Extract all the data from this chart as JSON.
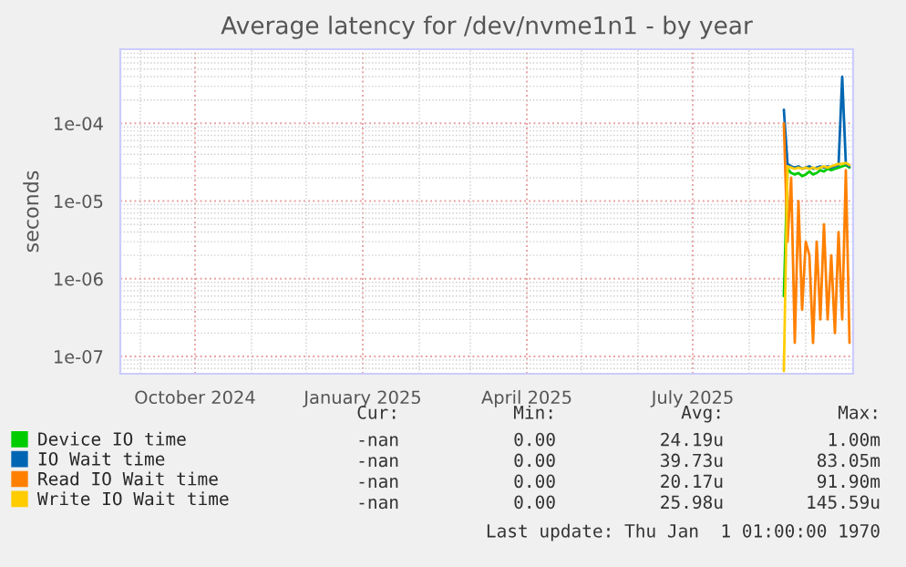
{
  "chart_data": {
    "type": "line",
    "title": "Average latency for /dev/nvme1n1 - by year",
    "ylabel": "seconds",
    "x": [
      "2025-08-20",
      "2025-08-22",
      "2025-08-24",
      "2025-08-26",
      "2025-08-28",
      "2025-08-30",
      "2025-09-01",
      "2025-09-03",
      "2025-09-05",
      "2025-09-07",
      "2025-09-09",
      "2025-09-11",
      "2025-09-13",
      "2025-09-15",
      "2025-09-17",
      "2025-09-19",
      "2025-09-21",
      "2025-09-23",
      "2025-09-25"
    ],
    "series": [
      {
        "name": "Device IO time",
        "color": "#00cc00",
        "values": [
          6e-07,
          2.6e-05,
          2.3e-05,
          2.2e-05,
          2.3e-05,
          2.1e-05,
          2.2e-05,
          2.4e-05,
          2.2e-05,
          2.3e-05,
          2.5e-05,
          2.4e-05,
          2.6e-05,
          2.5e-05,
          2.6e-05,
          2.7e-05,
          2.8e-05,
          2.9e-05,
          2.7e-05
        ]
      },
      {
        "name": "IO Wait time",
        "color": "#0066b3",
        "values": [
          0.00015,
          3e-05,
          2.8e-05,
          2.7e-05,
          2.8e-05,
          2.6e-05,
          2.7e-05,
          2.8e-05,
          2.6e-05,
          2.7e-05,
          2.8e-05,
          2.7e-05,
          2.8e-05,
          2.7e-05,
          2.8e-05,
          2.9e-05,
          0.0004,
          3e-05,
          2.8e-05
        ]
      },
      {
        "name": "Read IO Wait time",
        "color": "#ff8000",
        "values": [
          0.0001,
          3e-06,
          2e-05,
          1.5e-07,
          1e-05,
          4e-07,
          3e-06,
          2e-06,
          1.5e-07,
          3e-06,
          3e-07,
          5e-06,
          3e-07,
          2e-06,
          2e-07,
          4e-06,
          3e-07,
          2.5e-05,
          1.5e-07
        ]
      },
      {
        "name": "Write IO Wait time",
        "color": "#ffcc00",
        "values": [
          6.5e-08,
          2.8e-05,
          2.7e-05,
          2.6e-05,
          2.7e-05,
          2.6e-05,
          2.7e-05,
          2.6e-05,
          2.7e-05,
          2.6e-05,
          2.7e-05,
          2.8e-05,
          2.7e-05,
          2.8e-05,
          2.9e-05,
          3e-05,
          3e-05,
          3.1e-05,
          2.9e-05
        ]
      }
    ],
    "log": "y",
    "xlim": [
      "2024-08-21",
      "2025-09-27"
    ],
    "ylim": [
      6e-08,
      0.0009
    ],
    "xticks": [
      {
        "value": "2024-10-01",
        "label": "October 2024"
      },
      {
        "value": "2025-01-01",
        "label": "January 2025"
      },
      {
        "value": "2025-04-01",
        "label": "April 2025"
      },
      {
        "value": "2025-07-01",
        "label": "July 2025"
      }
    ],
    "yticks": [
      {
        "value": 1e-07,
        "label": "1e-07"
      },
      {
        "value": 1e-06,
        "label": "1e-06"
      },
      {
        "value": 1e-05,
        "label": "1e-05"
      },
      {
        "value": 0.0001,
        "label": "1e-04"
      }
    ],
    "grid": true,
    "legend": "bottom",
    "annotations": [
      "Cur:",
      "Min:",
      "Avg:",
      "Max:",
      "-nan",
      "0.00",
      "24.19u",
      "1.00m",
      "-nan",
      "0.00",
      "39.73u",
      "83.05m",
      "-nan",
      "0.00",
      "20.17u",
      "91.90m",
      "-nan",
      "0.00",
      "25.98u",
      "145.59u",
      "Last update: Thu Jan  1 01:00:00 1970"
    ]
  }
}
